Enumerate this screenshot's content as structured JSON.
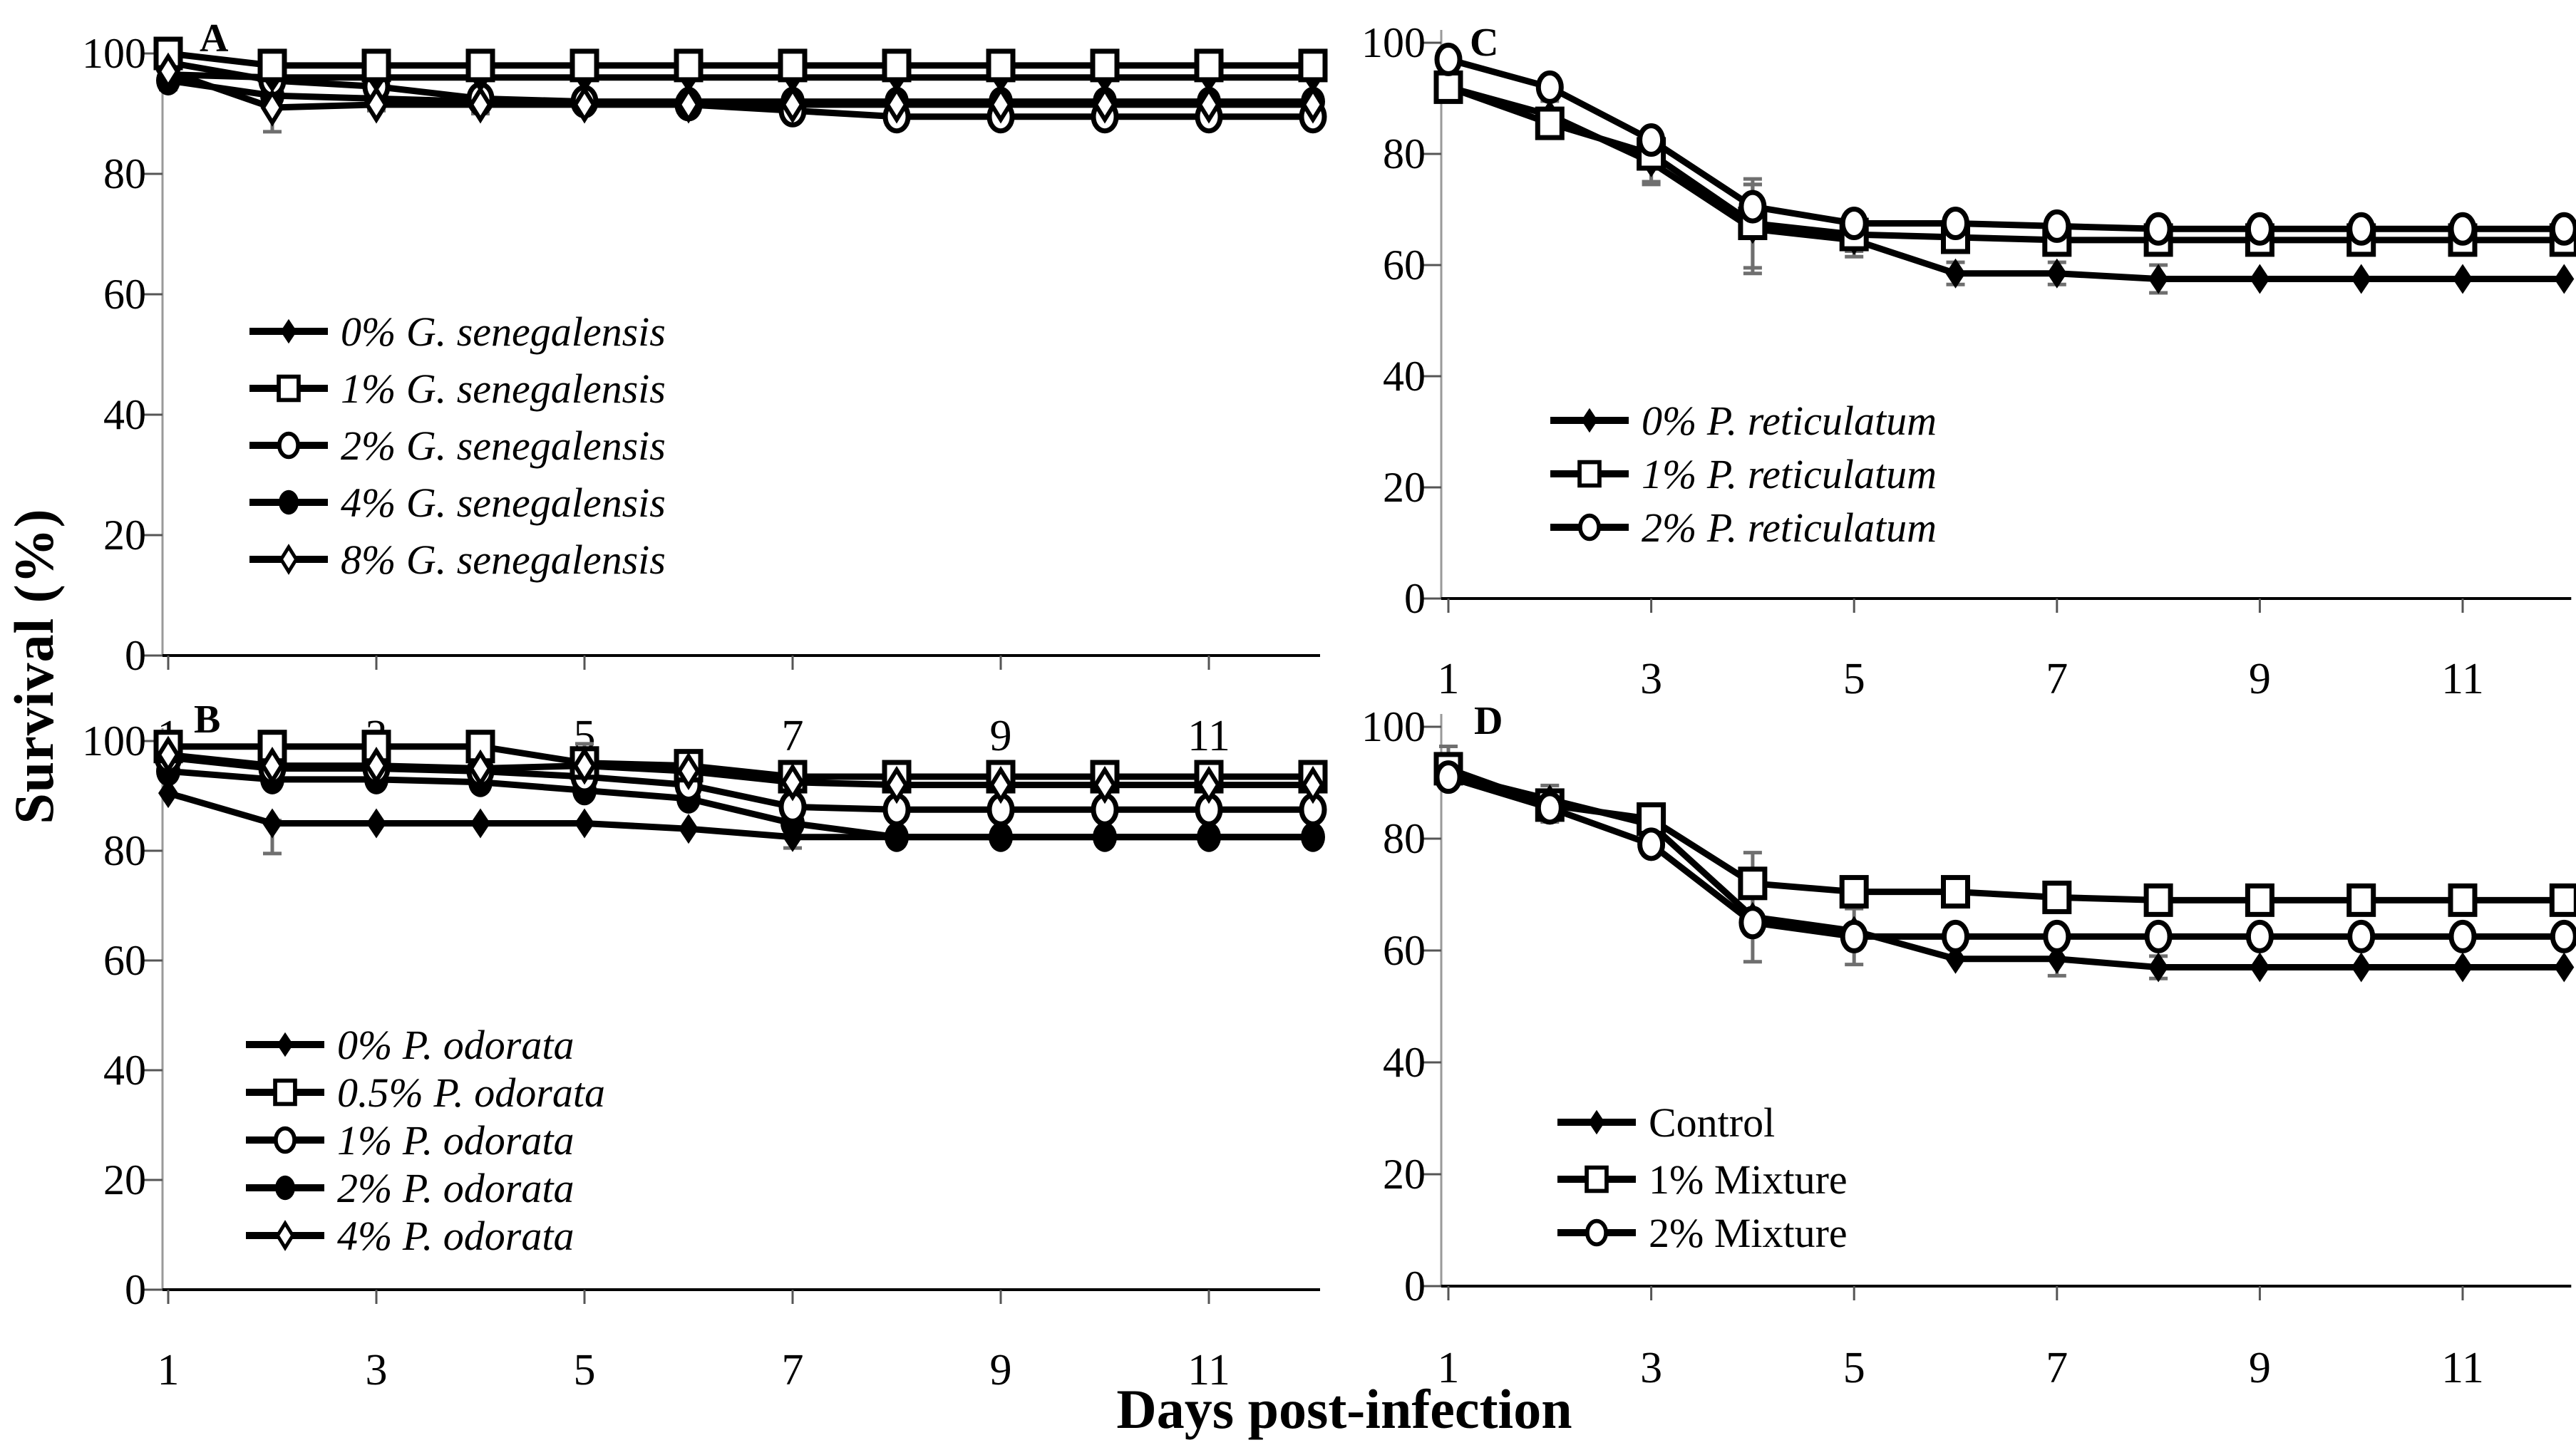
{
  "figure": {
    "y_axis_title": "Survival (%)",
    "x_axis_title": "Days post-infection"
  },
  "chart_data": [
    {
      "id": "A",
      "panel_label": "A",
      "type": "line",
      "x": [
        1,
        2,
        3,
        4,
        5,
        6,
        7,
        8,
        9,
        10,
        11,
        12
      ],
      "x_ticks": [
        1,
        3,
        5,
        7,
        9,
        11
      ],
      "y_ticks": [
        0,
        20,
        40,
        60,
        80,
        100
      ],
      "ylim": [
        0,
        100
      ],
      "xlim": [
        1,
        12
      ],
      "grid": false,
      "legend_position": "inside-lower-left",
      "legend_italic": true,
      "series": [
        {
          "name": "0% G. senegalensis",
          "marker": "diamond-filled",
          "values": [
            96.5,
            96,
            96,
            96,
            96,
            96,
            96,
            96,
            96,
            96,
            96,
            96
          ],
          "err": [
            0,
            0,
            0,
            0,
            0,
            0,
            0,
            0,
            0,
            0,
            0,
            0
          ]
        },
        {
          "name": "1% G. senegalensis",
          "marker": "square-open",
          "values": [
            100,
            98,
            98,
            98,
            98,
            98,
            98,
            98,
            98,
            98,
            98,
            98
          ],
          "err": [
            1,
            0,
            0,
            0,
            0,
            0,
            0,
            0,
            0,
            0,
            0,
            0
          ]
        },
        {
          "name": "2% G. senegalensis",
          "marker": "circle-open",
          "values": [
            98.5,
            95.5,
            94.5,
            92.5,
            92,
            91.5,
            90.5,
            89.5,
            89.5,
            89.5,
            89.5,
            89.5
          ],
          "err": [
            0,
            0,
            0,
            0,
            0,
            0,
            1.5,
            1,
            0,
            0,
            0,
            0
          ]
        },
        {
          "name": "4% G. senegalensis",
          "marker": "circle-filled",
          "values": [
            95.5,
            93,
            92.5,
            92,
            92,
            92,
            92,
            92,
            92,
            92,
            92,
            92
          ],
          "err": [
            1.5,
            0,
            0,
            0,
            0,
            0,
            0,
            0,
            0,
            0,
            0,
            0
          ]
        },
        {
          "name": "8% G. senegalensis",
          "marker": "diamond-open",
          "values": [
            97,
            91,
            91.5,
            91.5,
            91.5,
            91.5,
            91.5,
            91.5,
            91.5,
            91.5,
            91.5,
            91.5
          ],
          "err": [
            0,
            [
              0.5,
              4
            ],
            1,
            1.5,
            0,
            0,
            1.5,
            0,
            0,
            1.5,
            0,
            0
          ]
        }
      ]
    },
    {
      "id": "B",
      "panel_label": "B",
      "type": "line",
      "x": [
        1,
        2,
        3,
        4,
        5,
        6,
        7,
        8,
        9,
        10,
        11,
        12
      ],
      "x_ticks": [
        1,
        3,
        5,
        7,
        9,
        11
      ],
      "y_ticks": [
        0,
        20,
        40,
        60,
        80,
        100
      ],
      "ylim": [
        0,
        100
      ],
      "xlim": [
        1,
        12
      ],
      "grid": false,
      "legend_position": "inside-lower-left",
      "legend_italic": true,
      "series": [
        {
          "name": "0% P. odorata",
          "marker": "diamond-filled",
          "values": [
            90.5,
            85,
            85,
            85,
            85,
            84,
            82.5,
            82.5,
            82.5,
            82.5,
            82.5,
            82.5
          ],
          "err": [
            0,
            [
              0.5,
              5.5
            ],
            0,
            0,
            0,
            0,
            2,
            0,
            0,
            1,
            0,
            0
          ]
        },
        {
          "name": "0.5% P. odorata",
          "marker": "square-open",
          "values": [
            99,
            99,
            99,
            99,
            96,
            95.5,
            93.5,
            93.5,
            93.5,
            93.5,
            93.5,
            93.5
          ],
          "err": [
            0,
            0,
            0,
            0,
            [
              3.5,
              0.5
            ],
            0,
            1.5,
            0,
            0,
            0,
            0,
            0
          ]
        },
        {
          "name": "1% P. odorata",
          "marker": "circle-open",
          "values": [
            97,
            95,
            95,
            94.5,
            93.5,
            92,
            88,
            87.5,
            87.5,
            87.5,
            87.5,
            87.5
          ],
          "err": [
            0,
            0,
            0,
            0,
            0,
            0,
            0,
            0,
            0,
            0,
            0,
            0
          ]
        },
        {
          "name": "2% P. odorata",
          "marker": "circle-filled",
          "values": [
            94.5,
            93,
            93,
            92.5,
            91,
            89.5,
            85,
            82.5,
            82.5,
            82.5,
            82.5,
            82.5
          ],
          "err": [
            0,
            0,
            0,
            1,
            0,
            0,
            0,
            0,
            0,
            0,
            0,
            0
          ]
        },
        {
          "name": "4% P. odorata",
          "marker": "diamond-open",
          "values": [
            97.5,
            95.5,
            95.5,
            95,
            95.5,
            94.5,
            92.5,
            92,
            92,
            92,
            92,
            92
          ],
          "err": [
            0,
            0,
            0,
            0,
            0,
            2,
            1.5,
            0,
            0,
            1,
            0,
            0
          ]
        }
      ]
    },
    {
      "id": "C",
      "panel_label": "C",
      "type": "line",
      "x": [
        1,
        2,
        3,
        4,
        5,
        6,
        7,
        8,
        9,
        10,
        11,
        12
      ],
      "x_ticks": [
        1,
        3,
        5,
        7,
        9,
        11
      ],
      "y_ticks": [
        0,
        20,
        40,
        60,
        80,
        100
      ],
      "ylim": [
        0,
        100
      ],
      "xlim": [
        1,
        12
      ],
      "grid": false,
      "legend_position": "inside-lower-left",
      "legend_italic": true,
      "series": [
        {
          "name": "0% P. reticulatum",
          "marker": "diamond-filled",
          "values": [
            92,
            87,
            78.5,
            66.5,
            64.5,
            58.5,
            58.5,
            57.5,
            57.5,
            57.5,
            57.5,
            57.5
          ],
          "err": [
            2,
            2.5,
            4,
            8,
            3,
            2,
            2,
            2.5,
            0,
            0,
            0,
            0
          ]
        },
        {
          "name": "1% P. reticulatum",
          "marker": "square-open",
          "values": [
            92,
            85.5,
            80,
            67.5,
            65.5,
            65,
            64.5,
            64.5,
            64.5,
            64.5,
            64.5,
            64.5
          ],
          "err": [
            0,
            2.5,
            [
              1.5,
              5
            ],
            8,
            3,
            0,
            2,
            0,
            0,
            0,
            0,
            0
          ]
        },
        {
          "name": "2% P. reticulatum",
          "marker": "circle-open",
          "values": [
            97,
            92,
            82.5,
            70.5,
            67.5,
            67.5,
            67,
            66.5,
            66.5,
            66.5,
            66.5,
            66.5
          ],
          "err": [
            0,
            2,
            1.5,
            4,
            2,
            0,
            1.5,
            0,
            0,
            0,
            0,
            0
          ]
        }
      ]
    },
    {
      "id": "D",
      "panel_label": "D",
      "type": "line",
      "x": [
        1,
        2,
        3,
        4,
        5,
        6,
        7,
        8,
        9,
        10,
        11,
        12
      ],
      "x_ticks": [
        1,
        3,
        5,
        7,
        9,
        11
      ],
      "y_ticks": [
        0,
        20,
        40,
        60,
        80,
        100
      ],
      "ylim": [
        0,
        100
      ],
      "xlim": [
        1,
        12
      ],
      "grid": false,
      "legend_position": "inside-lower-left",
      "legend_italic": false,
      "series": [
        {
          "name": "Control",
          "marker": "diamond-filled",
          "values": [
            91.5,
            87,
            82.5,
            66,
            63.5,
            58.5,
            58.5,
            57,
            57,
            57,
            57,
            57
          ],
          "err": [
            0,
            2.5,
            0,
            0,
            0,
            0,
            3,
            2,
            0,
            0,
            0,
            0
          ]
        },
        {
          "name": "1% Mixture",
          "marker": "square-open",
          "values": [
            92.5,
            86,
            83.5,
            72,
            70.5,
            70.5,
            69.5,
            69,
            69,
            69,
            69,
            69
          ],
          "err": [
            [
              4,
              1
            ],
            2.5,
            1.5,
            5.5,
            0,
            0,
            1.5,
            2,
            0,
            0,
            0,
            0
          ]
        },
        {
          "name": "2% Mixture",
          "marker": "circle-open",
          "values": [
            91,
            85.5,
            79,
            65,
            62.5,
            62.5,
            62.5,
            62.5,
            62.5,
            62.5,
            62.5,
            62.5
          ],
          "err": [
            0,
            2.5,
            2,
            7,
            5,
            1,
            0,
            0,
            0,
            0,
            0,
            0
          ]
        }
      ]
    }
  ]
}
